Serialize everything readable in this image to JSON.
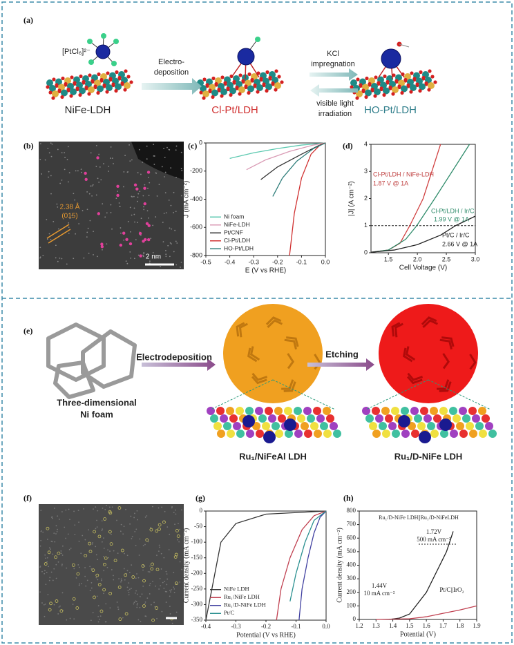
{
  "figure": {
    "panel_labels": [
      "(a)",
      "(b)",
      "(c)",
      "(d)",
      "(e)",
      "(f)",
      "(g)",
      "(h)"
    ],
    "a": {
      "precursor": "[PtCl₆]²⁻",
      "step1": [
        "Electro-",
        "deposition"
      ],
      "step2": [
        "KCl",
        "impregnation"
      ],
      "step3": [
        "visible light",
        "irradiation"
      ],
      "structures": [
        "NiFe-LDH",
        "Cl-Pt/LDH",
        "HO-Pt/LDH"
      ]
    },
    "b": {
      "spacing": "2.38 Å",
      "plane": "(015)",
      "scale": "2 nm"
    },
    "e": {
      "steps": [
        "Electrodeposition",
        "Etching"
      ],
      "substrate": [
        "Three-dimensional",
        "Ni foam"
      ],
      "products": [
        "Ru₁/NiFeAl LDH",
        "Ru₁/D-NiFe LDH"
      ]
    }
  },
  "chart_data": [
    {
      "type": "line",
      "xlabel": "E (V vs RHE)",
      "ylabel": "J (mA cm⁻²)",
      "xlim": [
        -0.5,
        0.0
      ],
      "xticks": [
        -0.5,
        -0.4,
        -0.3,
        -0.2,
        -0.1,
        {
          "value": 0,
          "label": "0.0"
        }
      ],
      "ylim": [
        -800,
        0
      ],
      "yticks": [
        -800,
        -600,
        -400,
        -200,
        0
      ],
      "legend": "lower left",
      "series": [
        {
          "name": "Ni foam",
          "color": "#5cc9b0",
          "x": [
            -0.4,
            -0.3,
            -0.2,
            -0.1,
            0
          ],
          "values": [
            -110,
            -70,
            -40,
            -15,
            0
          ]
        },
        {
          "name": "NiFe-LDH",
          "color": "#d99ab4",
          "x": [
            -0.33,
            -0.25,
            -0.15,
            -0.05,
            0
          ],
          "values": [
            -190,
            -120,
            -60,
            -15,
            0
          ]
        },
        {
          "name": "Pt/CNF",
          "color": "#333333",
          "x": [
            -0.27,
            -0.2,
            -0.1,
            -0.03,
            0
          ],
          "values": [
            -260,
            -170,
            -80,
            -20,
            0
          ]
        },
        {
          "name": "Cl-Pt/LDH",
          "color": "#d03030",
          "x": [
            -0.15,
            -0.13,
            -0.1,
            -0.06,
            -0.02,
            0
          ],
          "values": [
            -800,
            -500,
            -250,
            -80,
            -10,
            0
          ]
        },
        {
          "name": "HO-Pt/LDH",
          "color": "#2e7d7a",
          "x": [
            -0.22,
            -0.18,
            -0.12,
            -0.05,
            0
          ],
          "values": [
            -380,
            -250,
            -130,
            -40,
            0
          ]
        }
      ]
    },
    {
      "type": "line",
      "xlabel": "Cell Voltage (V)",
      "ylabel": "|J| (A cm⁻²)",
      "xlim": [
        1.2,
        3.0
      ],
      "xticks": [
        1.5,
        {
          "value": 2,
          "label": "2.0"
        },
        2.5,
        {
          "value": 3,
          "label": "3.0"
        }
      ],
      "ylim": [
        0,
        4
      ],
      "yticks": [
        0,
        1,
        2,
        3,
        4
      ],
      "hline": 1,
      "annotations": [
        "1.87 V @ 1A",
        "1.99 V @ 1A",
        "2.66 V @ 1A"
      ],
      "series": [
        {
          "name": "Cl-Pt/LDH / NiFe-LDH",
          "color": "#d04040",
          "x": [
            1.2,
            1.5,
            1.7,
            1.87,
            2.1,
            2.4
          ],
          "values": [
            0.02,
            0.1,
            0.35,
            1,
            2,
            4
          ]
        },
        {
          "name": "Cl-Pt/LDH / Ir/C",
          "color": "#2e8b6a",
          "x": [
            1.2,
            1.5,
            1.8,
            1.99,
            2.3,
            2.9
          ],
          "values": [
            0.02,
            0.1,
            0.5,
            1,
            2,
            4
          ]
        },
        {
          "name": "Pt/C / Ir/C",
          "color": "#222222",
          "x": [
            1.2,
            1.6,
            2.0,
            2.4,
            2.66,
            3.0
          ],
          "values": [
            0.02,
            0.1,
            0.3,
            0.65,
            1,
            1.35
          ]
        }
      ]
    },
    {
      "type": "line",
      "xlabel": "Potential (V vs RHE)",
      "ylabel": "Current density (mA cm⁻²)",
      "xlim": [
        -0.4,
        0.0
      ],
      "xticks": [
        -0.4,
        -0.3,
        -0.2,
        -0.1,
        {
          "value": 0,
          "label": "0.0"
        }
      ],
      "ylim": [
        -350,
        0
      ],
      "yticks": [
        -350,
        -300,
        -250,
        -200,
        -150,
        -100,
        -50,
        0
      ],
      "legend": "lower left",
      "series": [
        {
          "name": "NiFe LDH",
          "color": "#333333",
          "x": [
            -0.4,
            -0.38,
            -0.35,
            -0.3,
            -0.2,
            0
          ],
          "values": [
            -350,
            -250,
            -100,
            -40,
            -10,
            0
          ]
        },
        {
          "name": "Ru₁/NiFe LDH",
          "color": "#c04050",
          "x": [
            -0.165,
            -0.15,
            -0.12,
            -0.08,
            -0.04,
            0
          ],
          "values": [
            -350,
            -250,
            -150,
            -60,
            -15,
            0
          ]
        },
        {
          "name": "Ru₁/D-NiFe LDH",
          "color": "#4040a0",
          "x": [
            -0.09,
            -0.08,
            -0.06,
            -0.04,
            -0.02,
            0
          ],
          "values": [
            -350,
            -250,
            -150,
            -70,
            -20,
            0
          ]
        },
        {
          "name": "Pt/C",
          "color": "#2a9090",
          "x": [
            -0.12,
            -0.1,
            -0.07,
            -0.04,
            0
          ],
          "values": [
            -290,
            -200,
            -100,
            -30,
            0
          ]
        }
      ]
    },
    {
      "type": "line",
      "xlabel": "Potential (V)",
      "ylabel": "Current density (mA cm⁻²)",
      "xlim": [
        1.2,
        1.9
      ],
      "xticks": [
        1.2,
        1.3,
        1.4,
        1.5,
        1.6,
        1.7,
        1.8,
        1.9
      ],
      "ylim": [
        0,
        800
      ],
      "yticks": [
        0,
        100,
        200,
        300,
        400,
        500,
        600,
        700,
        800
      ],
      "annotations": [
        "1.72V",
        "500 mA cm⁻²",
        "1.44V",
        "10 mA cm⁻²"
      ],
      "series": [
        {
          "name": "Ru₁/D-NiFe LDH||Ru₁/D-NiFeLDH",
          "color": "#222222",
          "x": [
            1.38,
            1.44,
            1.5,
            1.6,
            1.7,
            1.72,
            1.76
          ],
          "values": [
            0,
            10,
            40,
            200,
            450,
            500,
            650
          ]
        },
        {
          "name": "Pt/C||IrO₂",
          "color": "#c04050",
          "x": [
            1.3,
            1.5,
            1.6,
            1.7,
            1.8,
            1.9
          ],
          "values": [
            0,
            5,
            20,
            45,
            70,
            100
          ]
        }
      ]
    }
  ]
}
